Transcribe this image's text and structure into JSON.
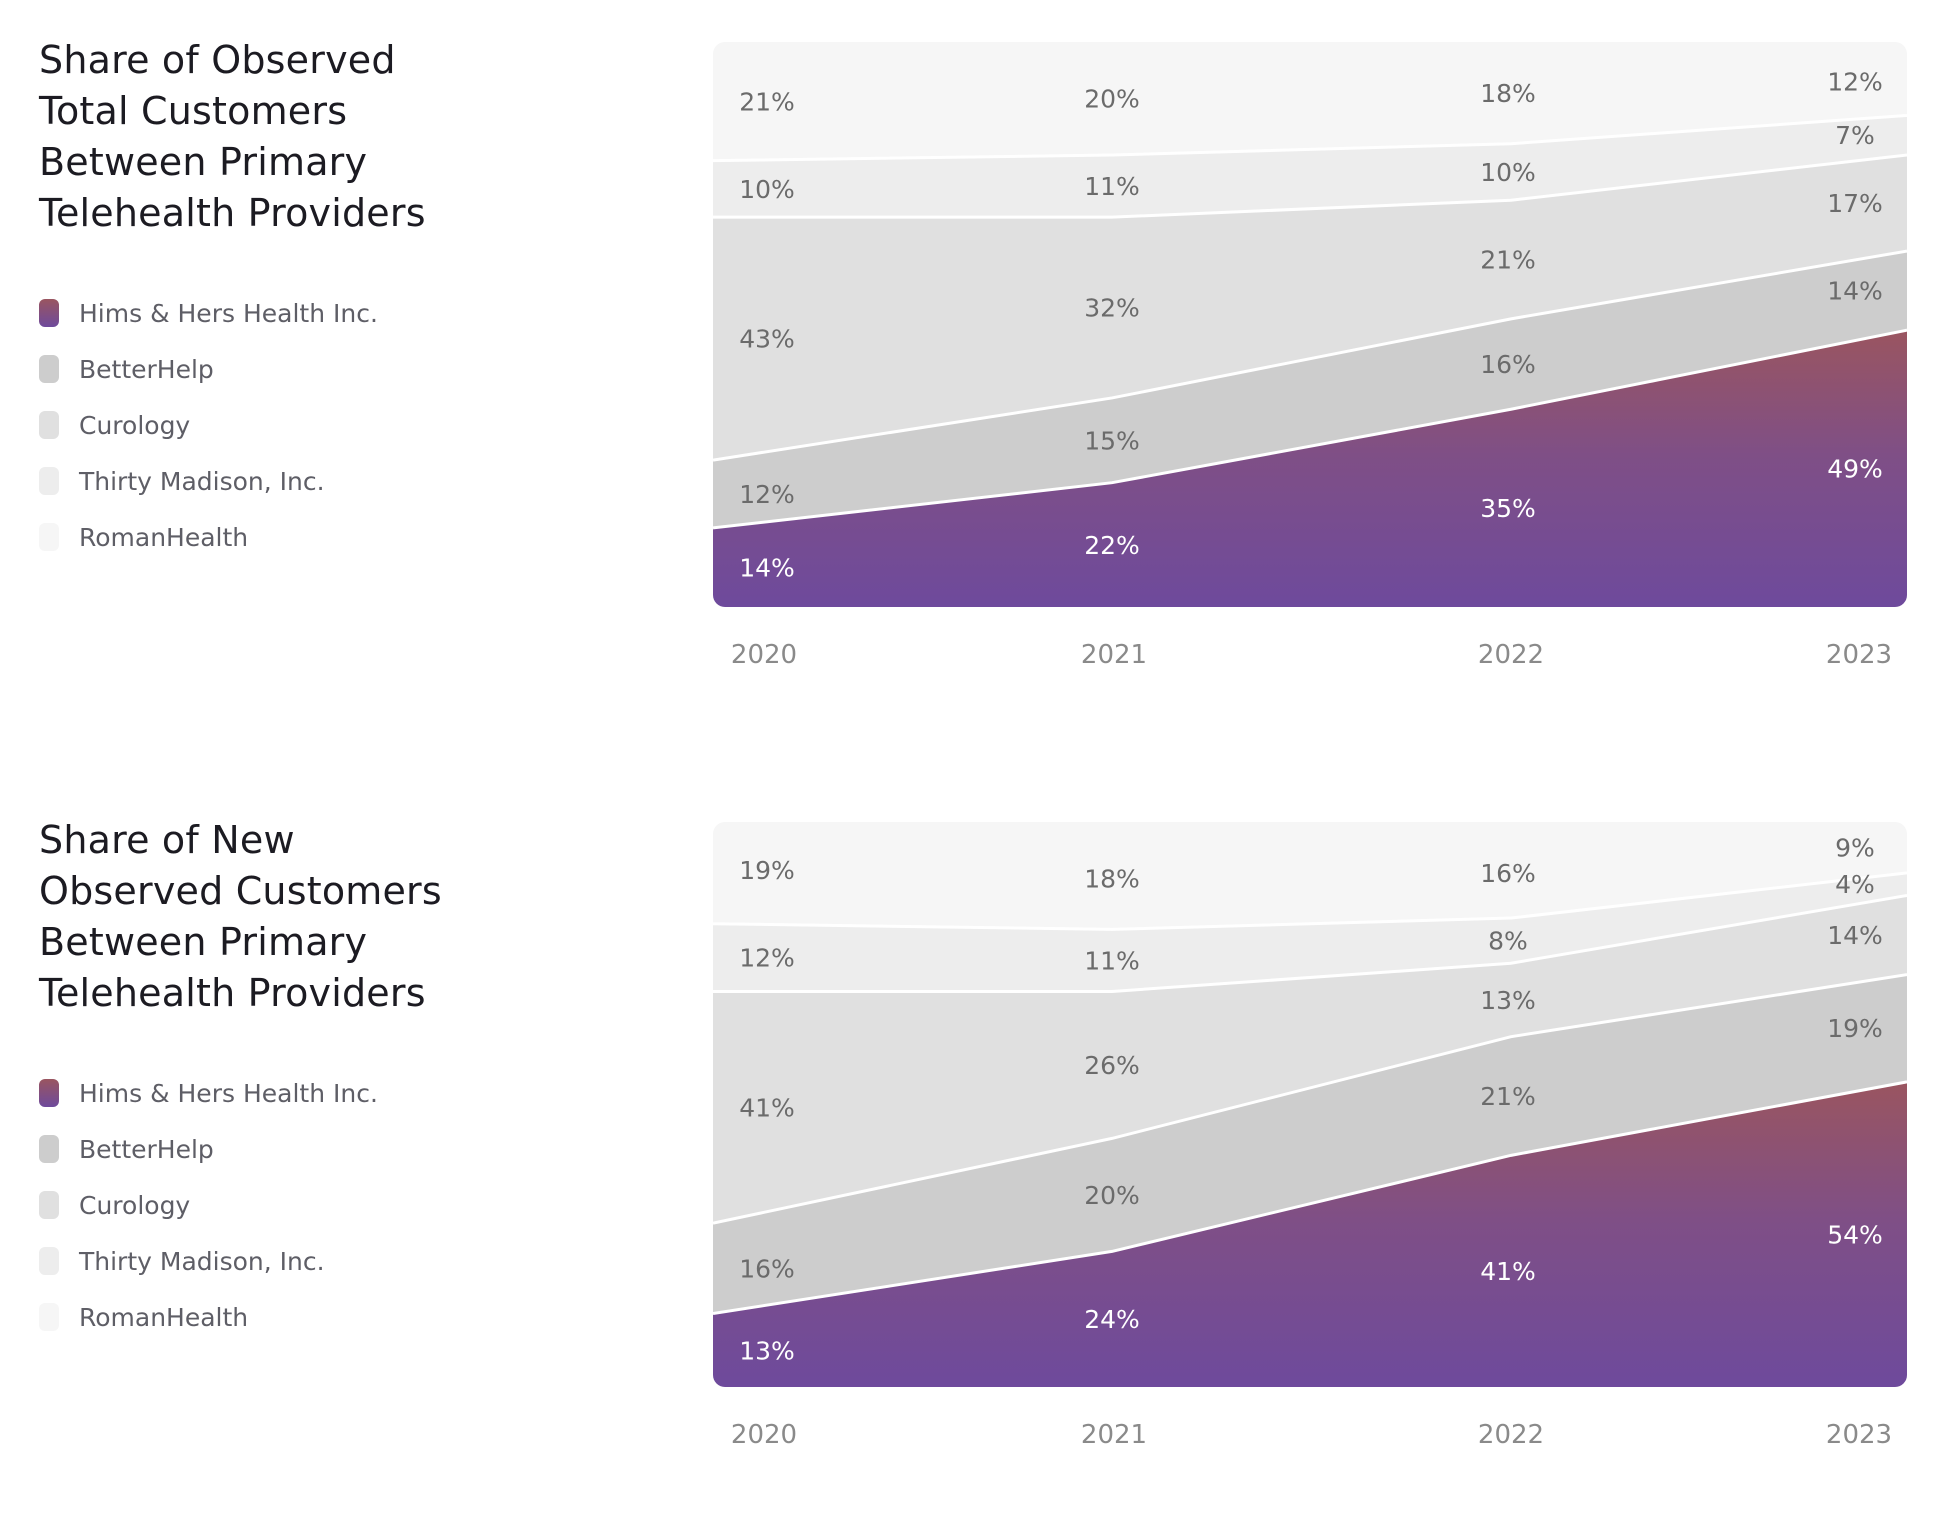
{
  "colors": {
    "hims_top": "#9a5560",
    "hims_mid": "#7f4f86",
    "hims_bottom": "#6e4a9c",
    "betterhelp": "#cdcdcd",
    "curology": "#e0e0e0",
    "thirty_madison": "#ededed",
    "romanhealth": "#f6f6f6",
    "label_dark": "#6b6b6b",
    "label_light": "#ffffff"
  },
  "legend": [
    {
      "label": "Hims & Hers Health Inc.",
      "icon": "gradient-swatch"
    },
    {
      "label": "BetterHelp",
      "icon": "swatch"
    },
    {
      "label": "Curology",
      "icon": "swatch"
    },
    {
      "label": "Thirty Madison, Inc.",
      "icon": "swatch"
    },
    {
      "label": "RomanHealth",
      "icon": "swatch"
    }
  ],
  "chart_data": [
    {
      "type": "area",
      "stacked": "percent",
      "title": "Share of Observed Total Customers Between Primary Telehealth Providers",
      "x": [
        "2020",
        "2021",
        "2022",
        "2023"
      ],
      "ylim": [
        0,
        100
      ],
      "grid": false,
      "legend_position": "left",
      "series": [
        {
          "name": "Hims & Hers Health Inc.",
          "values": [
            14,
            22,
            35,
            49
          ]
        },
        {
          "name": "BetterHelp",
          "values": [
            12,
            15,
            16,
            14
          ]
        },
        {
          "name": "Curology",
          "values": [
            43,
            32,
            21,
            17
          ]
        },
        {
          "name": "Thirty Madison, Inc.",
          "values": [
            10,
            11,
            10,
            7
          ]
        },
        {
          "name": "RomanHealth",
          "values": [
            21,
            20,
            18,
            12
          ]
        }
      ]
    },
    {
      "type": "area",
      "stacked": "percent",
      "title": "Share of New Observed Customers Between Primary Telehealth Providers",
      "x": [
        "2020",
        "2021",
        "2022",
        "2023"
      ],
      "ylim": [
        0,
        100
      ],
      "grid": false,
      "legend_position": "left",
      "series": [
        {
          "name": "Hims & Hers Health Inc.",
          "values": [
            13,
            24,
            41,
            54
          ]
        },
        {
          "name": "BetterHelp",
          "values": [
            16,
            20,
            21,
            19
          ]
        },
        {
          "name": "Curology",
          "values": [
            41,
            26,
            13,
            14
          ]
        },
        {
          "name": "Thirty Madison, Inc.",
          "values": [
            12,
            11,
            8,
            4
          ]
        },
        {
          "name": "RomanHealth",
          "values": [
            19,
            18,
            16,
            9
          ]
        }
      ]
    }
  ]
}
